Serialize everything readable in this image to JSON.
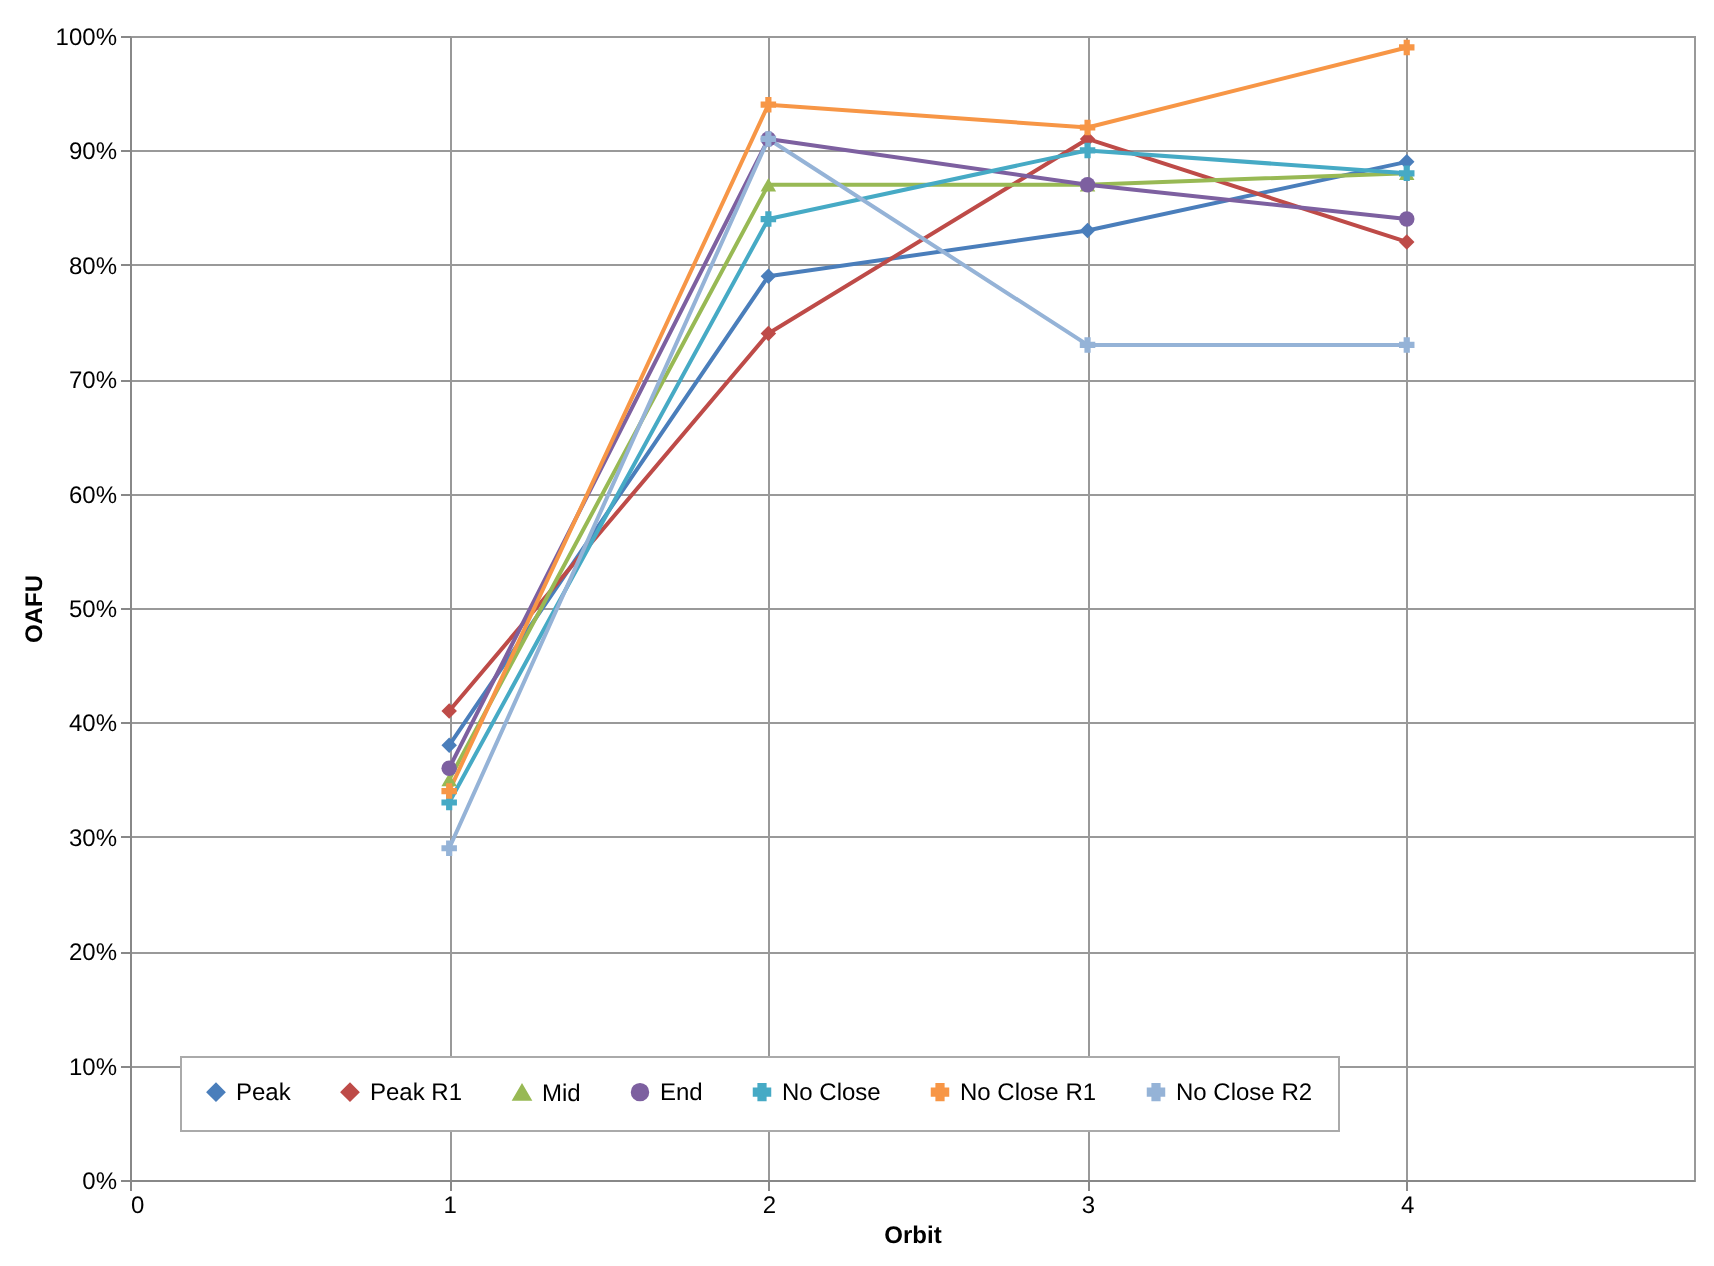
{
  "chart_data": {
    "type": "line",
    "xlabel": "Orbit",
    "ylabel": "OAFU",
    "x": [
      1,
      2,
      3,
      4
    ],
    "series": [
      {
        "name": "Peak",
        "color": "#4a7ebb",
        "marker": "diamond",
        "values": [
          38,
          79,
          83,
          89
        ]
      },
      {
        "name": "Peak R1",
        "color": "#be4b48",
        "marker": "diamond",
        "values": [
          41,
          74,
          91,
          82
        ]
      },
      {
        "name": "Mid",
        "color": "#98b954",
        "marker": "triangle",
        "values": [
          35,
          87,
          87,
          88
        ]
      },
      {
        "name": "End",
        "color": "#7d60a0",
        "marker": "circle",
        "values": [
          36,
          91,
          87,
          84
        ]
      },
      {
        "name": "No Close",
        "color": "#46aac5",
        "marker": "cross",
        "values": [
          33,
          84,
          90,
          88
        ]
      },
      {
        "name": "No Close R1",
        "color": "#f79646",
        "marker": "cross",
        "values": [
          34,
          94,
          92,
          99
        ]
      },
      {
        "name": "No Close R2",
        "color": "#95b3d7",
        "marker": "cross",
        "values": [
          29,
          91,
          73,
          73
        ]
      }
    ],
    "xlim": [
      0,
      4.9
    ],
    "xticks": [
      0,
      1,
      2,
      3,
      4
    ],
    "ylim": [
      0,
      100
    ],
    "yticks": [
      {
        "value": 0,
        "label": "0%"
      },
      {
        "value": 10,
        "label": "10%"
      },
      {
        "value": 20,
        "label": "20%"
      },
      {
        "value": 30,
        "label": "30%"
      },
      {
        "value": 40,
        "label": "40%"
      },
      {
        "value": 50,
        "label": "50%"
      },
      {
        "value": 60,
        "label": "60%"
      },
      {
        "value": 70,
        "label": "70%"
      },
      {
        "value": 80,
        "label": "80%"
      },
      {
        "value": 90,
        "label": "90%"
      },
      {
        "value": 100,
        "label": "100%"
      }
    ],
    "grid": true,
    "legend": "bottom",
    "line_style": "solid"
  }
}
